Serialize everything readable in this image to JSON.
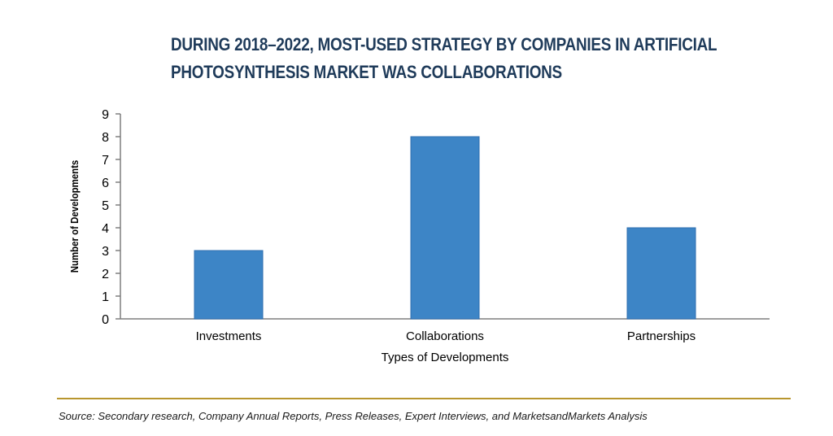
{
  "title_lines": [
    "DURING 2018–2022, MOST-USED STRATEGY BY COMPANIES IN ARTIFICIAL",
    "PHOTOSYNTHESIS MARKET WAS COLLABORATIONS"
  ],
  "source": "Source: Secondary research, Company Annual Reports, Press Releases, Expert Interviews, and MarketsandMarkets Analysis",
  "chart_data": {
    "type": "bar",
    "title": "DURING 2018–2022, MOST-USED STRATEGY BY COMPANIES IN ARTIFICIAL PHOTOSYNTHESIS MARKET WAS COLLABORATIONS",
    "categories": [
      "Investments",
      "Collaborations",
      "Partnerships"
    ],
    "values": [
      3,
      8,
      4
    ],
    "xlabel": "Types of Developments",
    "ylabel": "Number of Developments",
    "ylim": [
      0,
      9
    ],
    "yticks": [
      0,
      1,
      2,
      3,
      4,
      5,
      6,
      7,
      8,
      9
    ],
    "grid": false,
    "legend": "none",
    "bar_color": "#3d85c6",
    "bar_edge_color": "#2f6fb0",
    "axis_color": "#7f7f7f"
  }
}
